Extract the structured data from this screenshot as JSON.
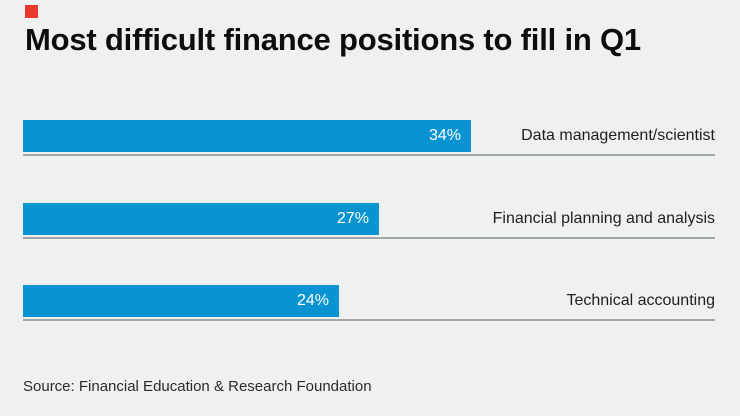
{
  "title": "Most difficult finance positions to fill in Q1",
  "source": "Source: Financial Education & Research Foundation",
  "colors": {
    "background": "#eff0f0",
    "bar": "#0994d1",
    "rule": "#a3a6a7",
    "brand_mark": "#e9392c",
    "title_text": "#0d0d0d",
    "category_text": "#1f1f1f",
    "percent_text": "#ffffff",
    "source_text": "#2b2b2b"
  },
  "chart_data": {
    "type": "bar",
    "orientation": "horizontal",
    "title": "Most difficult finance positions to fill in Q1",
    "categories": [
      "Data management/scientist",
      "Financial planning and analysis",
      "Technical accounting"
    ],
    "values": [
      34,
      27,
      24
    ],
    "value_labels": [
      "34%",
      "27%",
      "24%"
    ],
    "unit": "percent",
    "xlim": [
      0,
      52.5
    ],
    "grid": "off",
    "value_label_position": "inside-end",
    "category_label_position": "right-aligned-outside",
    "source": "Source: Financial Education & Research Foundation"
  }
}
